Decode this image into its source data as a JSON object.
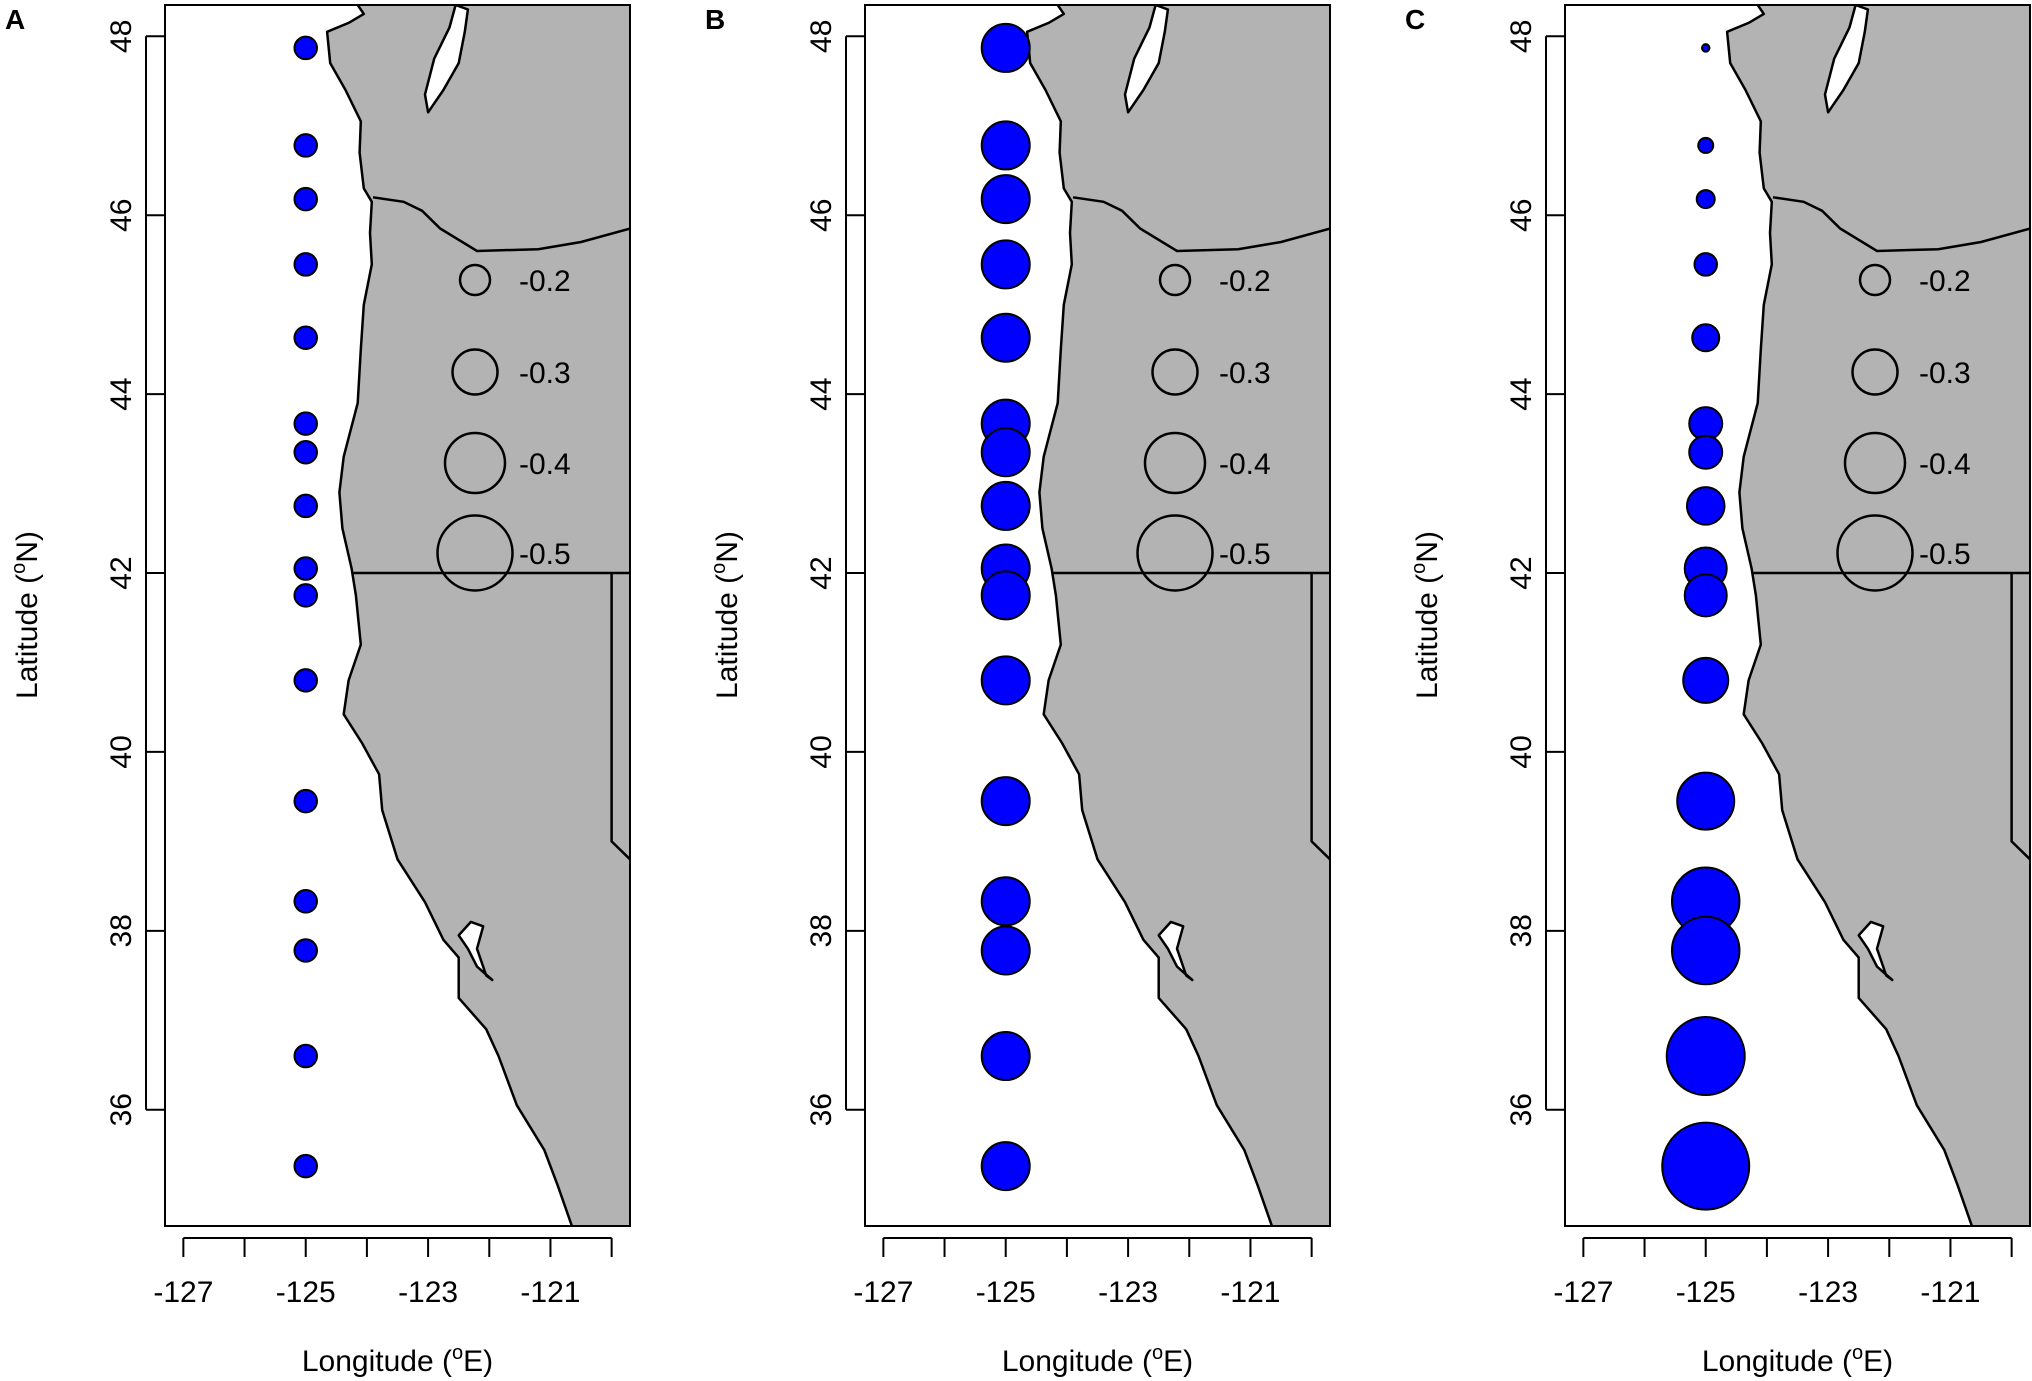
{
  "colors": {
    "land": "#b3b3b3",
    "ocean": "#ffffff",
    "point_fill": "#0000ff",
    "outline": "#000000"
  },
  "axes": {
    "xlabel": "Longitude (",
    "xlabel_sup": "o",
    "xlabel_end": "E)",
    "ylabel": "Latitude (",
    "ylabel_sup": "o",
    "ylabel_end": "N)",
    "xticks": [
      -127,
      -126,
      -125,
      -124,
      -123,
      -122,
      -121,
      -120
    ],
    "xtick_labels": [
      "-127",
      "",
      "-125",
      "",
      "-123",
      "",
      "-121",
      ""
    ],
    "yticks": [
      36,
      38,
      40,
      42,
      44,
      46,
      48
    ],
    "ytick_labels": [
      "36",
      "38",
      "40",
      "42",
      "44",
      "46",
      "48"
    ],
    "xlim": [
      -127.3,
      -119.7
    ],
    "ylim": [
      34.7,
      48.35
    ]
  },
  "legend": {
    "values": [
      -0.2,
      -0.3,
      -0.4,
      -0.5
    ],
    "labels": [
      "-0.2",
      "-0.3",
      "-0.4",
      "-0.5"
    ]
  },
  "panels": [
    {
      "letter": "A",
      "magnitudes": [
        0.15,
        0.15,
        0.15,
        0.15,
        0.15,
        0.15,
        0.15,
        0.15,
        0.15,
        0.15,
        0.15,
        0.15,
        0.15,
        0.15,
        0.15,
        0.15
      ]
    },
    {
      "letter": "B",
      "magnitudes": [
        0.32,
        0.32,
        0.32,
        0.32,
        0.32,
        0.32,
        0.32,
        0.32,
        0.32,
        0.32,
        0.32,
        0.32,
        0.32,
        0.32,
        0.32,
        0.32
      ]
    },
    {
      "letter": "C",
      "magnitudes": [
        0.05,
        0.1,
        0.12,
        0.15,
        0.18,
        0.22,
        0.22,
        0.25,
        0.28,
        0.28,
        0.3,
        0.38,
        0.45,
        0.45,
        0.52,
        0.58
      ]
    }
  ],
  "stations": {
    "lon": -125,
    "lat": [
      47.87,
      46.78,
      46.18,
      45.45,
      44.63,
      43.67,
      43.35,
      42.75,
      42.05,
      41.75,
      40.8,
      39.45,
      38.33,
      37.78,
      36.6,
      35.37
    ]
  },
  "coast": {
    "main": [
      [
        -124.15,
        48.35
      ],
      [
        -124.05,
        48.25
      ],
      [
        -124.3,
        48.15
      ],
      [
        -124.65,
        48.05
      ],
      [
        -124.6,
        47.7
      ],
      [
        -124.35,
        47.4
      ],
      [
        -124.1,
        47.05
      ],
      [
        -124.12,
        46.7
      ],
      [
        -124.05,
        46.3
      ],
      [
        -123.92,
        46.15
      ],
      [
        -123.95,
        45.8
      ],
      [
        -123.92,
        45.45
      ],
      [
        -124.05,
        45.0
      ],
      [
        -124.1,
        44.5
      ],
      [
        -124.15,
        43.9
      ],
      [
        -124.38,
        43.3
      ],
      [
        -124.45,
        42.9
      ],
      [
        -124.4,
        42.5
      ],
      [
        -124.25,
        42.05
      ],
      [
        -124.18,
        41.75
      ],
      [
        -124.1,
        41.2
      ],
      [
        -124.3,
        40.8
      ],
      [
        -124.38,
        40.42
      ],
      [
        -124.08,
        40.1
      ],
      [
        -123.8,
        39.75
      ],
      [
        -123.75,
        39.35
      ],
      [
        -123.5,
        38.8
      ],
      [
        -123.05,
        38.32
      ],
      [
        -122.75,
        37.9
      ],
      [
        -122.5,
        37.7
      ],
      [
        -122.5,
        37.25
      ],
      [
        -122.05,
        36.9
      ],
      [
        -121.85,
        36.6
      ],
      [
        -121.55,
        36.05
      ],
      [
        -121.1,
        35.55
      ],
      [
        -120.88,
        35.15
      ],
      [
        -120.65,
        34.7
      ]
    ],
    "puget": [
      [
        -123.0,
        47.15
      ],
      [
        -122.75,
        47.4
      ],
      [
        -122.5,
        47.7
      ],
      [
        -122.4,
        48.05
      ],
      [
        -122.35,
        48.3
      ],
      [
        -122.55,
        48.35
      ],
      [
        -122.65,
        48.1
      ],
      [
        -122.9,
        47.75
      ],
      [
        -123.05,
        47.35
      ],
      [
        -123.0,
        47.15
      ]
    ],
    "sf_bay": [
      [
        -122.5,
        37.95
      ],
      [
        -122.3,
        38.1
      ],
      [
        -122.1,
        38.05
      ],
      [
        -122.2,
        37.8
      ],
      [
        -122.05,
        37.5
      ],
      [
        -121.95,
        37.45
      ],
      [
        -122.2,
        37.6
      ],
      [
        -122.35,
        37.8
      ],
      [
        -122.5,
        37.95
      ]
    ],
    "columbia_border": [
      [
        -123.9,
        46.2
      ],
      [
        -123.4,
        46.15
      ],
      [
        -123.1,
        46.05
      ],
      [
        -122.8,
        45.85
      ],
      [
        -122.2,
        45.6
      ],
      [
        -121.2,
        45.62
      ],
      [
        -120.5,
        45.7
      ],
      [
        -119.7,
        45.85
      ]
    ],
    "or_ca_border": [
      [
        -124.22,
        42.0
      ],
      [
        -119.7,
        42.0
      ]
    ],
    "ca_nv_border": [
      [
        -120.0,
        42.0
      ],
      [
        -120.0,
        39.0
      ],
      [
        -119.7,
        38.8
      ]
    ]
  }
}
